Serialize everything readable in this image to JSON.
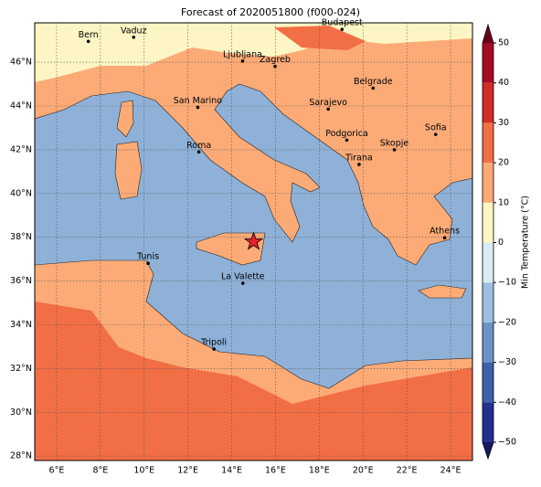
{
  "chart_data": {
    "type": "map",
    "title": "Forecast of 2020051800 (f000-024)",
    "xlim": [
      5,
      25
    ],
    "ylim": [
      27.8,
      47.8
    ],
    "xticks": [
      {
        "value": 6,
        "label": "6°E"
      },
      {
        "value": 8,
        "label": "8°E"
      },
      {
        "value": 10,
        "label": "10°E"
      },
      {
        "value": 12,
        "label": "12°E"
      },
      {
        "value": 14,
        "label": "14°E"
      },
      {
        "value": 16,
        "label": "16°E"
      },
      {
        "value": 18,
        "label": "18°E"
      },
      {
        "value": 20,
        "label": "20°E"
      },
      {
        "value": 22,
        "label": "22°E"
      },
      {
        "value": 24,
        "label": "24°E"
      }
    ],
    "yticks": [
      {
        "value": 28,
        "label": "28°N"
      },
      {
        "value": 30,
        "label": "30°N"
      },
      {
        "value": 32,
        "label": "32°N"
      },
      {
        "value": 34,
        "label": "34°N"
      },
      {
        "value": 36,
        "label": "36°N"
      },
      {
        "value": 38,
        "label": "38°N"
      },
      {
        "value": 40,
        "label": "40°N"
      },
      {
        "value": 42,
        "label": "42°N"
      },
      {
        "value": 44,
        "label": "44°N"
      },
      {
        "value": 46,
        "label": "46°N"
      }
    ],
    "grid": true,
    "cities": [
      {
        "name": "Bern",
        "lon": 7.45,
        "lat": 46.95
      },
      {
        "name": "Vaduz",
        "lon": 9.52,
        "lat": 47.14
      },
      {
        "name": "Budapest",
        "lon": 19.04,
        "lat": 47.5
      },
      {
        "name": "Ljubljana",
        "lon": 14.5,
        "lat": 46.05
      },
      {
        "name": "Zagreb",
        "lon": 15.98,
        "lat": 45.81
      },
      {
        "name": "Belgrade",
        "lon": 20.46,
        "lat": 44.82
      },
      {
        "name": "San Marino",
        "lon": 12.45,
        "lat": 43.94
      },
      {
        "name": "Sarajevo",
        "lon": 18.41,
        "lat": 43.86
      },
      {
        "name": "Sofia",
        "lon": 23.32,
        "lat": 42.7
      },
      {
        "name": "Podgorica",
        "lon": 19.26,
        "lat": 42.44
      },
      {
        "name": "Skopje",
        "lon": 21.43,
        "lat": 42.0
      },
      {
        "name": "Roma",
        "lon": 12.5,
        "lat": 41.9
      },
      {
        "name": "Tirana",
        "lon": 19.82,
        "lat": 41.33
      },
      {
        "name": "Athens",
        "lon": 23.73,
        "lat": 37.98
      },
      {
        "name": "Tunis",
        "lon": 10.18,
        "lat": 36.81
      },
      {
        "name": "La Valette",
        "lon": 14.51,
        "lat": 35.9
      },
      {
        "name": "Tripoli",
        "lon": 13.19,
        "lat": 32.89
      }
    ],
    "marker": {
      "lon": 15.0,
      "lat": 37.8,
      "color": "#e8202a"
    },
    "colorbar": {
      "label": "Min Temperature (°C)",
      "lim": [
        -50,
        50
      ],
      "ticks": [
        {
          "value": -50,
          "label": "−50"
        },
        {
          "value": -40,
          "label": "−40"
        },
        {
          "value": -30,
          "label": "−30"
        },
        {
          "value": -20,
          "label": "−20"
        },
        {
          "value": -10,
          "label": "−10"
        },
        0,
        10,
        20,
        30,
        40,
        50
      ],
      "colors": [
        "#23308f",
        "#3f5fa8",
        "#6b93c5",
        "#9cc0df",
        "#d7ecf4",
        "#fdf6c4",
        "#fcab77",
        "#f26e44",
        "#d12c26",
        "#a50a26"
      ],
      "under": "#141660",
      "over": "#6b0014"
    }
  }
}
